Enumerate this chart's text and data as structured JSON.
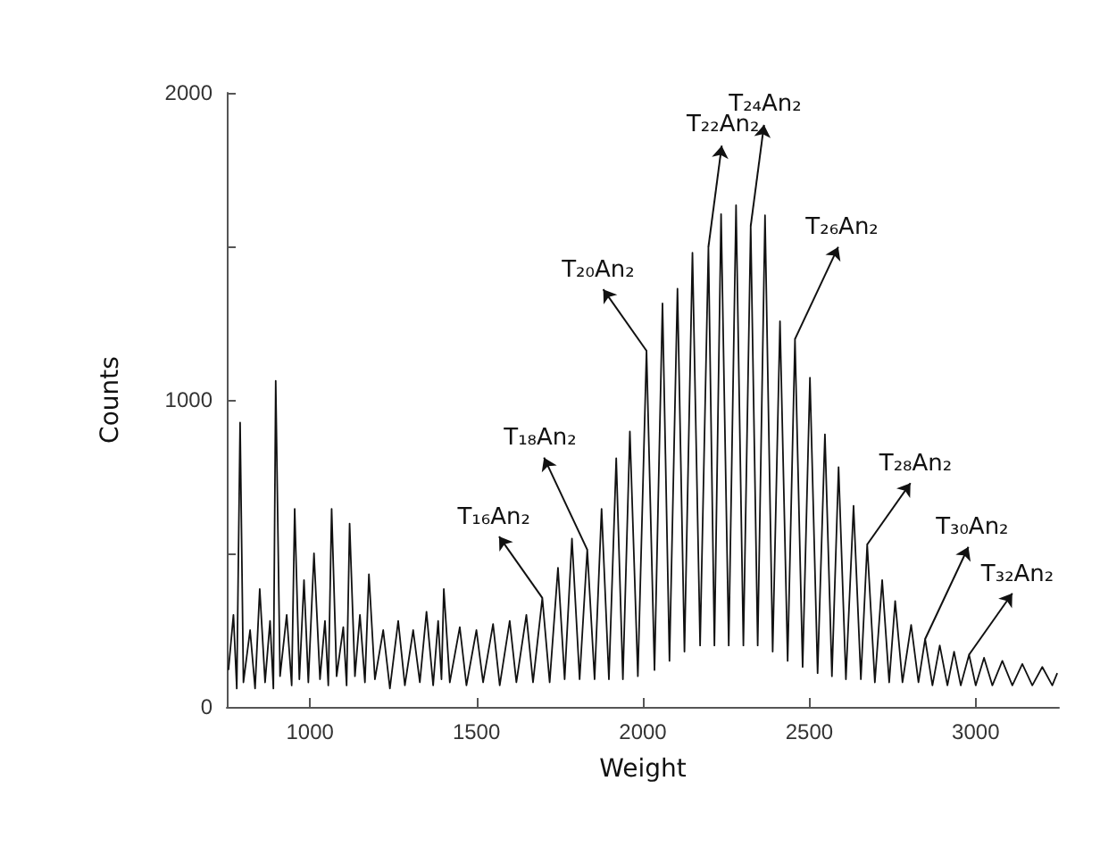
{
  "chart_data": {
    "type": "line",
    "xlabel": "Weight",
    "ylabel": "Counts",
    "x": [
      755,
      770,
      780,
      790,
      800,
      820,
      835,
      849,
      865,
      880,
      890,
      897,
      910,
      930,
      945,
      954,
      968,
      982,
      995,
      1012,
      1030,
      1045,
      1055,
      1065,
      1080,
      1100,
      1110,
      1119,
      1135,
      1150,
      1165,
      1177,
      1195,
      1220,
      1240,
      1265,
      1285,
      1310,
      1330,
      1350,
      1370,
      1385,
      1395,
      1402,
      1420,
      1450,
      1470,
      1500,
      1520,
      1550,
      1570,
      1600,
      1620,
      1650,
      1670,
      1698,
      1720,
      1745,
      1765,
      1787,
      1810,
      1833,
      1855,
      1876,
      1898,
      1920,
      1940,
      1961,
      1985,
      2011,
      2035,
      2059,
      2080,
      2104,
      2125,
      2149,
      2172,
      2197,
      2215,
      2235,
      2258,
      2280,
      2302,
      2324,
      2345,
      2367,
      2390,
      2412,
      2435,
      2457,
      2480,
      2502,
      2525,
      2547,
      2568,
      2588,
      2610,
      2633,
      2655,
      2674,
      2697,
      2719,
      2740,
      2758,
      2780,
      2806,
      2828,
      2848,
      2870,
      2892,
      2915,
      2935,
      2955,
      2980,
      3000,
      3025,
      3050,
      3080,
      3110,
      3140,
      3170,
      3200,
      3230,
      3245
    ],
    "series": [
      {
        "color": "#111111",
        "values": [
          120,
          300,
          60,
          926,
          80,
          250,
          60,
          384,
          80,
          280,
          60,
          1062,
          100,
          300,
          70,
          645,
          90,
          413,
          80,
          500,
          90,
          280,
          70,
          645,
          100,
          260,
          70,
          597,
          100,
          300,
          80,
          432,
          90,
          250,
          60,
          280,
          70,
          250,
          80,
          310,
          70,
          280,
          90,
          384,
          80,
          260,
          70,
          250,
          80,
          270,
          70,
          280,
          80,
          300,
          80,
          355,
          80,
          453,
          90,
          548,
          90,
          512,
          90,
          645,
          90,
          810,
          90,
          897,
          100,
          1160,
          120,
          1314,
          150,
          1362,
          180,
          1479,
          200,
          1498,
          200,
          1605,
          200,
          1634,
          200,
          1566,
          200,
          1601,
          180,
          1256,
          150,
          1198,
          130,
          1072,
          110,
          888,
          100,
          781,
          90,
          655,
          90,
          529,
          80,
          413,
          80,
          345,
          80,
          267,
          80,
          221,
          70,
          200,
          70,
          180,
          70,
          170,
          70,
          160,
          70,
          150,
          70,
          140,
          70,
          130,
          70,
          110
        ]
      }
    ],
    "xlim": [
      750,
      3250
    ],
    "xticks": [
      1000,
      1500,
      2000,
      2500,
      3000
    ],
    "ylim": [
      0,
      2000
    ],
    "yticks": [
      0,
      {
        "value": 500,
        "label": null
      },
      1000,
      {
        "value": 1500,
        "label": null
      },
      2000
    ],
    "marker": "none",
    "line_style": "solid",
    "annotations": [
      {
        "text": "T₁₆An₂",
        "x": 1698,
        "y": 355
      },
      {
        "text": "T₁₈An₂",
        "x": 1833,
        "y": 512
      },
      {
        "text": "T₂₀An₂",
        "x": 2011,
        "y": 1160
      },
      {
        "text": "T₂₂An₂",
        "x": 2197,
        "y": 1498
      },
      {
        "text": "T₂₄An₂",
        "x": 2324,
        "y": 1566
      },
      {
        "text": "T₂₆An₂",
        "x": 2457,
        "y": 1198
      },
      {
        "text": "T₂₈An₂",
        "x": 2674,
        "y": 529
      },
      {
        "text": "T₃₀An₂",
        "x": 2848,
        "y": 221
      },
      {
        "text": "T₃₂An₂",
        "x": 2980,
        "y": 170
      }
    ]
  }
}
